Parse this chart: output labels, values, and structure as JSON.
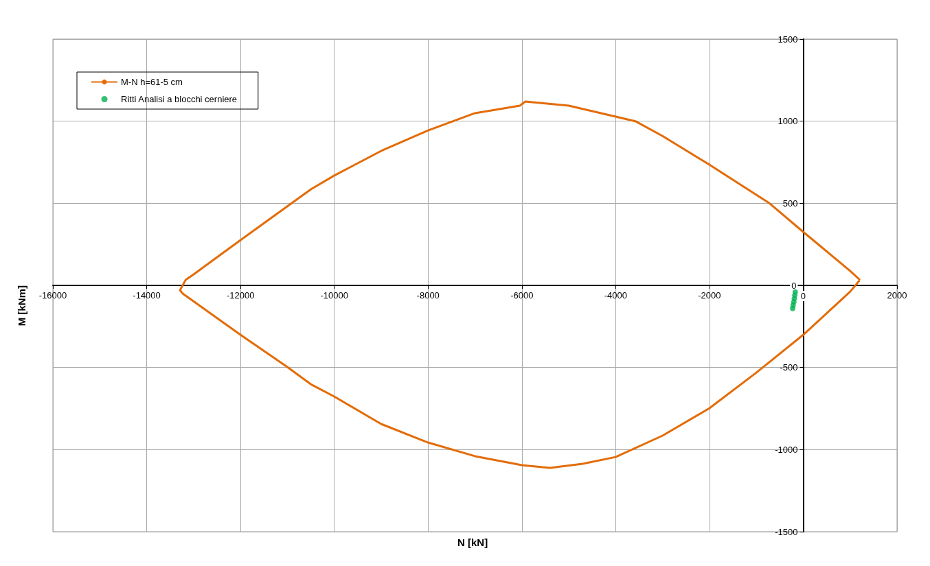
{
  "chart_data": {
    "type": "line",
    "xlabel": "N [kN]",
    "ylabel": "M [kNm]",
    "xlim": [
      -16000,
      2000
    ],
    "xticks": [
      -16000,
      -14000,
      -12000,
      -10000,
      -8000,
      -6000,
      -4000,
      -2000,
      0,
      2000
    ],
    "ylim": [
      -1500,
      1500
    ],
    "yticks": [
      -1500,
      -1000,
      -500,
      0,
      500,
      1000,
      1500
    ],
    "grid": true,
    "legend": "top left",
    "marker": "none",
    "line_style": "solid",
    "series": [
      {
        "name": "M-N h=61-5 cm",
        "color": "#e36c09",
        "x": [
          1210,
          1000,
          0,
          -720,
          -2000,
          -3000,
          -3580,
          -4000,
          -5000,
          -5925,
          -6040,
          -7000,
          -8000,
          -9000,
          -10000,
          -10500,
          -12000,
          -13000,
          -13170,
          -13290,
          -13230,
          -12000,
          -11000,
          -10500,
          -10000,
          -9000,
          -8000,
          -7000,
          -6000,
          -5400,
          -4700,
          -4000,
          -3000,
          -2000,
          -1000,
          0,
          1000,
          1200
        ],
        "values": [
          33,
          88,
          326,
          500,
          735,
          910,
          1000,
          1028,
          1095,
          1120,
          1095,
          1049,
          944,
          819,
          669,
          585,
          276,
          67,
          33,
          -29,
          -50,
          -301,
          -497,
          -602,
          -677,
          -844,
          -957,
          -1040,
          -1095,
          -1111,
          -1086,
          -1045,
          -915,
          -748,
          -531,
          -301,
          -38,
          30
        ]
      },
      {
        "name": "Ritti Analisi a blocchi cerniere",
        "type": "scatter",
        "marker": "circle",
        "color": "#00b050",
        "x": [
          -170,
          -180,
          -190,
          -200,
          -215,
          -225
        ],
        "values": [
          -40,
          -60,
          -80,
          -100,
          -120,
          -140
        ]
      }
    ]
  }
}
